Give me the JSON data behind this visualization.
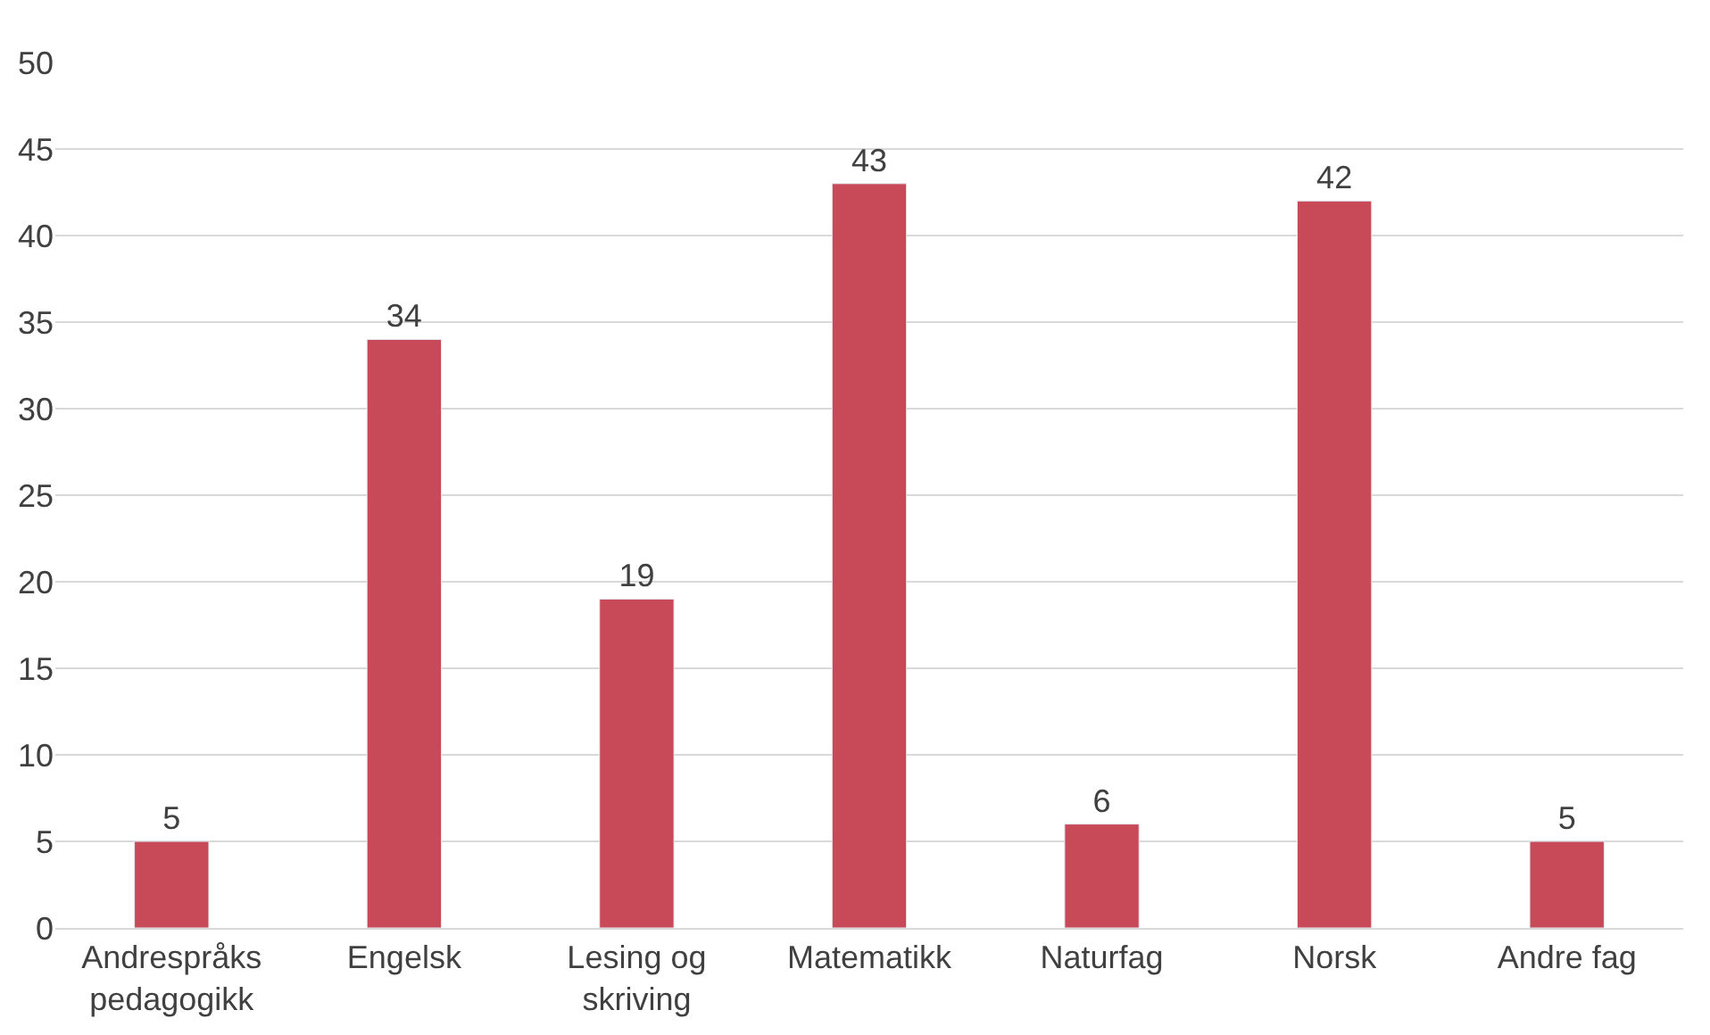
{
  "chart_data": {
    "type": "bar",
    "categories": [
      "Andrespråks pedagogikk",
      "Engelsk",
      "Lesing og skriving",
      "Matematikk",
      "Naturfag",
      "Norsk",
      "Andre fag"
    ],
    "values": [
      5,
      34,
      19,
      43,
      6,
      42,
      5
    ],
    "color": "#c84a58",
    "ylim": [
      0,
      50
    ],
    "yticks": [
      0,
      5,
      10,
      15,
      20,
      25,
      30,
      35,
      40,
      45,
      50
    ],
    "grid": "y",
    "data_labels": true
  }
}
